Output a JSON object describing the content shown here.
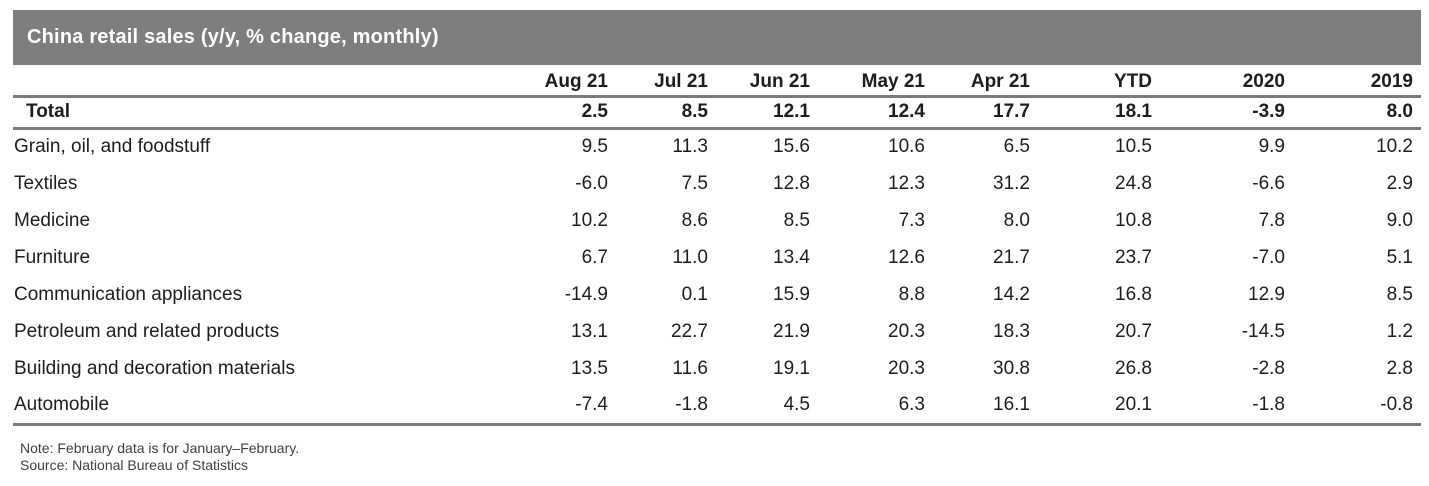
{
  "chart_data": {
    "type": "table",
    "title": "China retail sales (y/y, % change, monthly)",
    "columns": [
      "Aug 21",
      "Jul 21",
      "Jun 21",
      "May 21",
      "Apr 21",
      "YTD",
      "2020",
      "2019"
    ],
    "total_row": {
      "label": "Total",
      "values": [
        "2.5",
        "8.5",
        "12.1",
        "12.4",
        "17.7",
        "18.1",
        "-3.9",
        "8.0"
      ]
    },
    "rows": [
      {
        "label": "Grain, oil, and foodstuff",
        "values": [
          "9.5",
          "11.3",
          "15.6",
          "10.6",
          "6.5",
          "10.5",
          "9.9",
          "10.2"
        ]
      },
      {
        "label": "Textiles",
        "values": [
          "-6.0",
          "7.5",
          "12.8",
          "12.3",
          "31.2",
          "24.8",
          "-6.6",
          "2.9"
        ]
      },
      {
        "label": "Medicine",
        "values": [
          "10.2",
          "8.6",
          "8.5",
          "7.3",
          "8.0",
          "10.8",
          "7.8",
          "9.0"
        ]
      },
      {
        "label": "Furniture",
        "values": [
          "6.7",
          "11.0",
          "13.4",
          "12.6",
          "21.7",
          "23.7",
          "-7.0",
          "5.1"
        ]
      },
      {
        "label": "Communication appliances",
        "values": [
          "-14.9",
          "0.1",
          "15.9",
          "8.8",
          "14.2",
          "16.8",
          "12.9",
          "8.5"
        ]
      },
      {
        "label": "Petroleum and related products",
        "values": [
          "13.1",
          "22.7",
          "21.9",
          "20.3",
          "18.3",
          "20.7",
          "-14.5",
          "1.2"
        ]
      },
      {
        "label": "Building and decoration materials",
        "values": [
          "13.5",
          "11.6",
          "19.1",
          "20.3",
          "30.8",
          "26.8",
          "-2.8",
          "2.8"
        ]
      },
      {
        "label": "Automobile",
        "values": [
          "-7.4",
          "-1.8",
          "4.5",
          "6.3",
          "16.1",
          "20.1",
          "-1.8",
          "-0.8"
        ]
      }
    ],
    "notes": [
      "Note: February data is for January–February.",
      "Source: National Bureau of Statistics"
    ],
    "layout_hints": {
      "header_style": "gray-bar",
      "gridlines": "none-between-data-rows",
      "value_alignment": "right"
    }
  },
  "colors": {
    "title_bar_bg": "#7e7e7e",
    "title_text": "#ffffff",
    "rule": "#7a7a7a",
    "table_text": "#1d1d1d",
    "note_text": "#3f3f3f"
  }
}
